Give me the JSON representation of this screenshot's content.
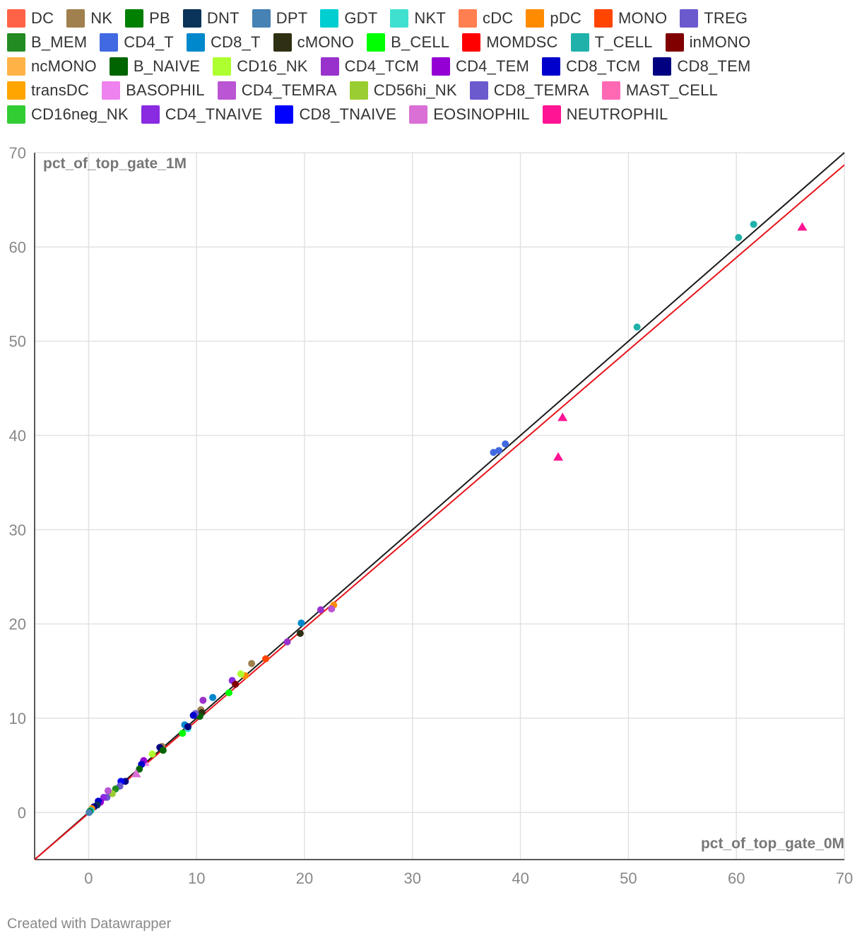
{
  "legend": [
    [
      {
        "label": "DC",
        "color": "#ff6347"
      },
      {
        "label": "NK",
        "color": "#a0804e"
      },
      {
        "label": "PB",
        "color": "#008000"
      },
      {
        "label": "DNT",
        "color": "#0a3459"
      },
      {
        "label": "DPT",
        "color": "#4682b4"
      },
      {
        "label": "GDT",
        "color": "#00ced1"
      },
      {
        "label": "NKT",
        "color": "#40e0d0"
      },
      {
        "label": "cDC",
        "color": "#ff7f50"
      },
      {
        "label": "pDC",
        "color": "#ff8c00"
      },
      {
        "label": "MONO",
        "color": "#ff4500"
      },
      {
        "label": "TREG",
        "color": "#6a5acd"
      }
    ],
    [
      {
        "label": "B_MEM",
        "color": "#228b22"
      },
      {
        "label": "CD4_T",
        "color": "#4169e1"
      },
      {
        "label": "CD8_T",
        "color": "#0088cc"
      },
      {
        "label": "cMONO",
        "color": "#2f2f14"
      },
      {
        "label": "B_CELL",
        "color": "#00ff00"
      },
      {
        "label": "MOMDSC",
        "color": "#ff0000"
      },
      {
        "label": "T_CELL",
        "color": "#20b2aa"
      },
      {
        "label": "inMONO",
        "color": "#800000"
      }
    ],
    [
      {
        "label": "ncMONO",
        "color": "#ffb347"
      },
      {
        "label": "B_NAIVE",
        "color": "#006400"
      },
      {
        "label": "CD16_NK",
        "color": "#adff2f"
      },
      {
        "label": "CD4_TCM",
        "color": "#9932cc"
      },
      {
        "label": "CD4_TEM",
        "color": "#9400d3"
      },
      {
        "label": "CD8_TCM",
        "color": "#0000cd"
      },
      {
        "label": "CD8_TEM",
        "color": "#000080"
      }
    ],
    [
      {
        "label": "transDC",
        "color": "#ffa500"
      },
      {
        "label": "BASOPHIL",
        "color": "#ee82ee"
      },
      {
        "label": "CD4_TEMRA",
        "color": "#ba55d3"
      },
      {
        "label": "CD56hi_NK",
        "color": "#9acd32"
      },
      {
        "label": "CD8_TEMRA",
        "color": "#6a5acd"
      },
      {
        "label": "MAST_CELL",
        "color": "#ff69b4"
      }
    ],
    [
      {
        "label": "CD16neg_NK",
        "color": "#32cd32"
      },
      {
        "label": "CD4_TNAIVE",
        "color": "#8a2be2"
      },
      {
        "label": "CD8_TNAIVE",
        "color": "#0000ff"
      },
      {
        "label": "EOSINOPHIL",
        "color": "#da70d6"
      },
      {
        "label": "NEUTROPHIL",
        "color": "#ff1493"
      }
    ]
  ],
  "chart_data": {
    "type": "scatter",
    "xlabel": "pct_of_top_gate_0M",
    "ylabel": "pct_of_top_gate_1M",
    "xlim": [
      -5,
      70
    ],
    "ylim": [
      -5,
      70
    ],
    "xticks": [
      "0",
      "10",
      "20",
      "30",
      "40",
      "50",
      "60",
      "70"
    ],
    "yticks": [
      "0",
      "10",
      "20",
      "30",
      "40",
      "50",
      "60",
      "70"
    ],
    "grid": true,
    "legend_position": "top",
    "lines": [
      {
        "name": "identity",
        "color": "#1a1a1a",
        "points": [
          [
            -5,
            -5
          ],
          [
            70,
            70
          ]
        ]
      },
      {
        "name": "fit",
        "color": "#e8141b",
        "points": [
          [
            -5,
            -5
          ],
          [
            70,
            68.7
          ]
        ]
      }
    ],
    "points": [
      {
        "x": 61.6,
        "y": 62.4,
        "label": "T_CELL",
        "color": "#20b2aa",
        "shape": "circle"
      },
      {
        "x": 60.2,
        "y": 61.0,
        "label": "T_CELL",
        "color": "#20b2aa",
        "shape": "circle"
      },
      {
        "x": 50.8,
        "y": 51.5,
        "label": "T_CELL",
        "color": "#20b2aa",
        "shape": "circle"
      },
      {
        "x": 66.1,
        "y": 62.1,
        "label": "NEUTROPHIL",
        "color": "#ff1493",
        "shape": "triangle"
      },
      {
        "x": 43.9,
        "y": 41.9,
        "label": "NEUTROPHIL",
        "color": "#ff1493",
        "shape": "triangle"
      },
      {
        "x": 43.5,
        "y": 37.7,
        "label": "NEUTROPHIL",
        "color": "#ff1493",
        "shape": "triangle"
      },
      {
        "x": 38.6,
        "y": 39.1,
        "label": "CD4_T",
        "color": "#4169e1",
        "shape": "circle"
      },
      {
        "x": 38.0,
        "y": 38.4,
        "label": "CD4_T",
        "color": "#4169e1",
        "shape": "circle"
      },
      {
        "x": 37.5,
        "y": 38.2,
        "label": "CD4_T",
        "color": "#4169e1",
        "shape": "circle"
      },
      {
        "x": 22.7,
        "y": 22.0,
        "label": "pDC",
        "color": "#ff8c00",
        "shape": "circle"
      },
      {
        "x": 22.5,
        "y": 21.6,
        "label": "CD4_TEMRA",
        "color": "#ba55d3",
        "shape": "circle"
      },
      {
        "x": 21.5,
        "y": 21.5,
        "label": "CD4_TCM",
        "color": "#9932cc",
        "shape": "circle"
      },
      {
        "x": 19.7,
        "y": 20.1,
        "label": "CD8_T",
        "color": "#0088cc",
        "shape": "circle"
      },
      {
        "x": 19.6,
        "y": 19.0,
        "label": "cMONO",
        "color": "#2f2f14",
        "shape": "circle"
      },
      {
        "x": 18.4,
        "y": 18.1,
        "label": "CD4_TEM",
        "color": "#9932cc",
        "shape": "circle"
      },
      {
        "x": 16.4,
        "y": 16.3,
        "label": "MONO",
        "color": "#ff4500",
        "shape": "circle"
      },
      {
        "x": 15.1,
        "y": 15.8,
        "label": "NK",
        "color": "#a0804e",
        "shape": "circle"
      },
      {
        "x": 14.5,
        "y": 14.5,
        "label": "transDC",
        "color": "#ff8c00",
        "shape": "circle"
      },
      {
        "x": 14.1,
        "y": 14.7,
        "label": "CD16_NK",
        "color": "#adff2f",
        "shape": "circle"
      },
      {
        "x": 13.3,
        "y": 14.0,
        "label": "CD4_TNAIVE",
        "color": "#8a2be2",
        "shape": "circle"
      },
      {
        "x": 13.6,
        "y": 13.6,
        "label": "inMONO",
        "color": "#800000",
        "shape": "circle"
      },
      {
        "x": 13.0,
        "y": 12.7,
        "label": "B_CELL",
        "color": "#00ff00",
        "shape": "circle"
      },
      {
        "x": 11.5,
        "y": 12.2,
        "label": "CD8_T",
        "color": "#0088cc",
        "shape": "circle"
      },
      {
        "x": 10.6,
        "y": 11.9,
        "label": "CD4_TCM",
        "color": "#9932cc",
        "shape": "circle"
      },
      {
        "x": 10.4,
        "y": 10.9,
        "label": "NK",
        "color": "#a0804e",
        "shape": "circle"
      },
      {
        "x": 10.5,
        "y": 10.6,
        "label": "cMONO",
        "color": "#2f2f14",
        "shape": "circle"
      },
      {
        "x": 10.3,
        "y": 10.2,
        "label": "B_NAIVE",
        "color": "#006400",
        "shape": "circle"
      },
      {
        "x": 9.9,
        "y": 10.5,
        "label": "TREG",
        "color": "#6a5acd",
        "shape": "circle"
      },
      {
        "x": 9.7,
        "y": 10.3,
        "label": "CD8_TCM",
        "color": "#0000cd",
        "shape": "circle"
      },
      {
        "x": 8.9,
        "y": 9.3,
        "label": "CD8_T",
        "color": "#0088cc",
        "shape": "circle"
      },
      {
        "x": 9.2,
        "y": 8.9,
        "label": "NKT",
        "color": "#40e0d0",
        "shape": "circle"
      },
      {
        "x": 9.2,
        "y": 9.1,
        "label": "CD8_TEM",
        "color": "#000080",
        "shape": "circle"
      },
      {
        "x": 8.7,
        "y": 8.4,
        "label": "B_CELL",
        "color": "#00ff00",
        "shape": "circle"
      },
      {
        "x": 6.8,
        "y": 7.0,
        "label": "NK",
        "color": "#a0804e",
        "shape": "circle"
      },
      {
        "x": 6.6,
        "y": 6.9,
        "label": "CD8_TEM",
        "color": "#000080",
        "shape": "circle"
      },
      {
        "x": 6.9,
        "y": 6.6,
        "label": "B_NAIVE",
        "color": "#006400",
        "shape": "circle"
      },
      {
        "x": 5.9,
        "y": 6.2,
        "label": "CD16_NK",
        "color": "#adff2f",
        "shape": "circle"
      },
      {
        "x": 5.2,
        "y": 5.3,
        "label": "BASOPHIL",
        "color": "#ee82ee",
        "shape": "triangle"
      },
      {
        "x": 5.1,
        "y": 5.5,
        "label": "CD4_TEM",
        "color": "#9400d3",
        "shape": "circle"
      },
      {
        "x": 4.9,
        "y": 5.1,
        "label": "CD8_TCM",
        "color": "#0000cd",
        "shape": "circle"
      },
      {
        "x": 4.7,
        "y": 4.6,
        "label": "B_NAIVE",
        "color": "#006400",
        "shape": "circle"
      },
      {
        "x": 4.4,
        "y": 4.1,
        "label": "EOSINOPHIL",
        "color": "#da70d6",
        "shape": "triangle"
      },
      {
        "x": 3.4,
        "y": 3.3,
        "label": "CD8_TEM",
        "color": "#000080",
        "shape": "circle"
      },
      {
        "x": 3.0,
        "y": 3.3,
        "label": "CD8_TNAIVE",
        "color": "#0000ff",
        "shape": "circle"
      },
      {
        "x": 2.9,
        "y": 2.8,
        "label": "CD8_TEMRA",
        "color": "#6a5acd",
        "shape": "circle"
      },
      {
        "x": 2.5,
        "y": 2.5,
        "label": "B_MEM",
        "color": "#228b22",
        "shape": "circle"
      },
      {
        "x": 2.2,
        "y": 2.0,
        "label": "CD56hi_NK",
        "color": "#9acd32",
        "shape": "circle"
      },
      {
        "x": 1.8,
        "y": 2.3,
        "label": "CD4_TEMRA",
        "color": "#ba55d3",
        "shape": "circle"
      },
      {
        "x": 1.7,
        "y": 1.6,
        "label": "TREG",
        "color": "#6a5acd",
        "shape": "circle"
      },
      {
        "x": 1.4,
        "y": 1.6,
        "label": "CD4_TNAIVE",
        "color": "#8a2be2",
        "shape": "circle"
      },
      {
        "x": 1.1,
        "y": 1.1,
        "label": "CD4_TEM",
        "color": "#9400d3",
        "shape": "circle"
      },
      {
        "x": 0.9,
        "y": 1.2,
        "label": "CD8_TCM",
        "color": "#0000cd",
        "shape": "circle"
      },
      {
        "x": 0.8,
        "y": 0.8,
        "label": "DNT",
        "color": "#0a3459",
        "shape": "circle"
      },
      {
        "x": 0.5,
        "y": 0.6,
        "label": "CD8_TEM",
        "color": "#000080",
        "shape": "circle"
      },
      {
        "x": 0.3,
        "y": 0.4,
        "label": "pDC",
        "color": "#ff8c00",
        "shape": "circle"
      },
      {
        "x": 0.2,
        "y": 0.2,
        "label": "GDT",
        "color": "#00ced1",
        "shape": "circle"
      },
      {
        "x": 0.1,
        "y": 0.1,
        "label": "PB",
        "color": "#008000",
        "shape": "circle"
      },
      {
        "x": 0.05,
        "y": 0.0,
        "label": "DPT",
        "color": "#4682b4",
        "shape": "circle"
      }
    ]
  },
  "footer": "Created with Datawrapper"
}
